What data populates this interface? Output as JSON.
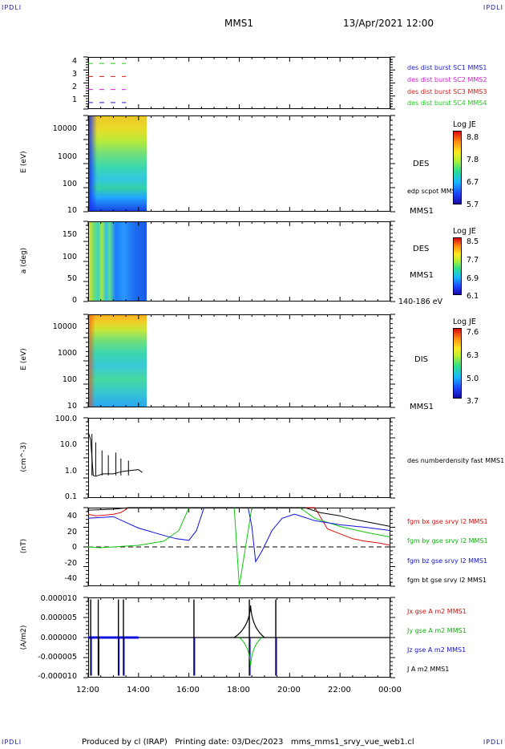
{
  "header": {
    "corner_tl": "IPDLI",
    "corner_tr": "IPDLI",
    "corner_bl": "IPDLI",
    "corner_br": "IPDLI",
    "spacecraft": "MMS1",
    "datetime": "13/Apr/2021 12:00"
  },
  "footer": {
    "text": "Produced by cl (IRAP)   Printing date: 03/Dec/2023   mms_mms1_srvy_vue_web1.cl"
  },
  "colors": {
    "sc1": "#1e1ed2",
    "sc2": "#d21ed2",
    "sc3": "#d21e1e",
    "sc4": "#1ec81e",
    "bx": "#e01010",
    "by": "#10c810",
    "bz": "#1010e0",
    "bt": "#000000"
  },
  "chart_data": [
    {
      "type": "line",
      "name": "burst-availability",
      "ylim": [
        0.5,
        4.5
      ],
      "yticks": [
        "4",
        "3",
        "2",
        "1"
      ],
      "series": [
        {
          "name": "des dist burst SC1 MMS1",
          "level": 1,
          "x_range": [
            "12:00",
            "13:30"
          ]
        },
        {
          "name": "des dist burst SC2 MMS2",
          "level": 2,
          "x_range": [
            "12:00",
            "13:30"
          ]
        },
        {
          "name": "des dist burst SC3 MMS3",
          "level": 3,
          "x_range": [
            "12:00",
            "13:30"
          ]
        },
        {
          "name": "des dist burst SC4 MMS4",
          "level": 4,
          "x_range": [
            "12:00",
            "13:30"
          ]
        }
      ]
    },
    {
      "type": "heatmap",
      "name": "des-energy",
      "ylabel": "E (eV)",
      "yscale": "log",
      "ylim": [
        10,
        30000
      ],
      "yticks": [
        "10000",
        "1000",
        "100",
        "10"
      ],
      "x_range": [
        "12:00",
        "14:20"
      ],
      "label": "DES",
      "extra_label": "edp scpot MMS1",
      "sc_label": "MMS1",
      "colorbar": {
        "title": "Log JE",
        "ticks": [
          "8.8",
          "7.8",
          "6.7",
          "5.7"
        ]
      }
    },
    {
      "type": "heatmap",
      "name": "des-pitch-angle",
      "ylabel": "a (deg)",
      "ylim": [
        0,
        180
      ],
      "yticks": [
        "150",
        "100",
        "50",
        "0"
      ],
      "x_range": [
        "12:00",
        "14:20"
      ],
      "label": "DES",
      "sc_label": "MMS1",
      "energy_band": "140-186 eV",
      "colorbar": {
        "title": "Log JE",
        "ticks": [
          "8.5",
          "7.7",
          "6.9",
          "6.1"
        ]
      }
    },
    {
      "type": "heatmap",
      "name": "dis-energy",
      "ylabel": "E (eV)",
      "yscale": "log",
      "ylim": [
        10,
        30000
      ],
      "yticks": [
        "10000",
        "1000",
        "100",
        "10"
      ],
      "x_range": [
        "12:00",
        "14:20"
      ],
      "label": "DIS",
      "sc_label": "MMS1",
      "colorbar": {
        "title": "Log JE",
        "ticks": [
          "7.6",
          "6.3",
          "5.0",
          "3.7"
        ]
      }
    },
    {
      "type": "line",
      "name": "density",
      "ylabel": "(cm^-3)",
      "yscale": "log",
      "ylim": [
        0.1,
        100
      ],
      "yticks": [
        "100.0",
        "10.0",
        "1.0",
        "0.1"
      ],
      "series": [
        {
          "name": "des numberdensity fast MMS1",
          "x": [
            12.0,
            12.1,
            12.2,
            12.3,
            12.4,
            12.5,
            12.6,
            12.8,
            13.0,
            13.2,
            13.4,
            13.6,
            13.8,
            14.0,
            14.15
          ],
          "y": [
            30,
            15,
            0.7,
            0.65,
            0.7,
            0.75,
            0.8,
            0.8,
            0.8,
            0.9,
            1.0,
            1.05,
            1.1,
            1.15,
            0.9
          ]
        }
      ]
    },
    {
      "type": "line",
      "name": "magnetic-field",
      "ylabel": "(nT)",
      "ylim": [
        -48,
        48
      ],
      "yticks": [
        "40",
        "20",
        "0",
        "-20",
        "-40"
      ],
      "series": [
        {
          "name": "fgm bx gse srvy l2 MMS1",
          "x": [
            12.0,
            12.3,
            12.7,
            13.0,
            13.3,
            13.6,
            21.0,
            21.5,
            22.0,
            22.5,
            23.0,
            23.5,
            24.0
          ],
          "y": [
            40,
            38,
            39,
            40,
            42,
            48,
            48,
            22,
            16,
            10,
            7,
            5,
            2
          ]
        },
        {
          "name": "fgm by gse srvy l2 MMS1",
          "x": [
            12.0,
            12.5,
            13.0,
            13.5,
            14.0,
            15.0,
            15.6,
            16.0,
            17.8,
            18.0,
            18.5,
            20.4,
            21.0,
            22.0,
            23.0,
            24.0
          ],
          "y": [
            0,
            -1,
            0,
            1,
            2,
            7,
            20,
            48,
            48,
            -48,
            48,
            48,
            35,
            25,
            18,
            12
          ]
        },
        {
          "name": "fgm bz gse srvy l2 MMS1",
          "x": [
            12.0,
            12.5,
            13.0,
            13.5,
            14.0,
            15.0,
            15.5,
            16.0,
            16.3,
            16.6,
            18.35,
            18.5,
            18.65,
            18.9,
            19.3,
            19.7,
            20.2,
            21.0,
            22.0,
            23.0,
            24.0
          ],
          "y": [
            35,
            36,
            37,
            30,
            23,
            14,
            10,
            8,
            20,
            48,
            48,
            25,
            -18,
            -5,
            20,
            35,
            40,
            32,
            27,
            24,
            20
          ]
        },
        {
          "name": "fgm bt gse srvy l2 MMS1",
          "x": [
            12.0,
            13.0,
            13.6,
            20.6,
            21.2,
            22.0,
            22.5,
            23.0,
            23.5,
            24.0
          ],
          "y": [
            45,
            46,
            48,
            48,
            42,
            38,
            34,
            31,
            28,
            25
          ]
        }
      ]
    },
    {
      "type": "line",
      "name": "current-density",
      "ylabel": "(A/m2)",
      "ylim": [
        -1e-05,
        1e-05
      ],
      "yticks": [
        "0.000010",
        "0.000005",
        "0.000000",
        "-0.000005",
        "-0.000010"
      ],
      "series": [
        {
          "name": "Jx gse A m2 MMS1"
        },
        {
          "name": "Jy gse A m2 MMS1"
        },
        {
          "name": "Jz gse A m2 MMS1"
        },
        {
          "name": "J A m2 MMS1"
        }
      ],
      "spikes": [
        12.1,
        12.4,
        13.2,
        13.4,
        16.2,
        18.4,
        19.45
      ]
    }
  ],
  "xaxis": {
    "ticks": [
      "12:00",
      "14:00",
      "16:00",
      "18:00",
      "20:00",
      "22:00",
      "00:00"
    ],
    "range_hours": [
      12,
      24
    ]
  }
}
